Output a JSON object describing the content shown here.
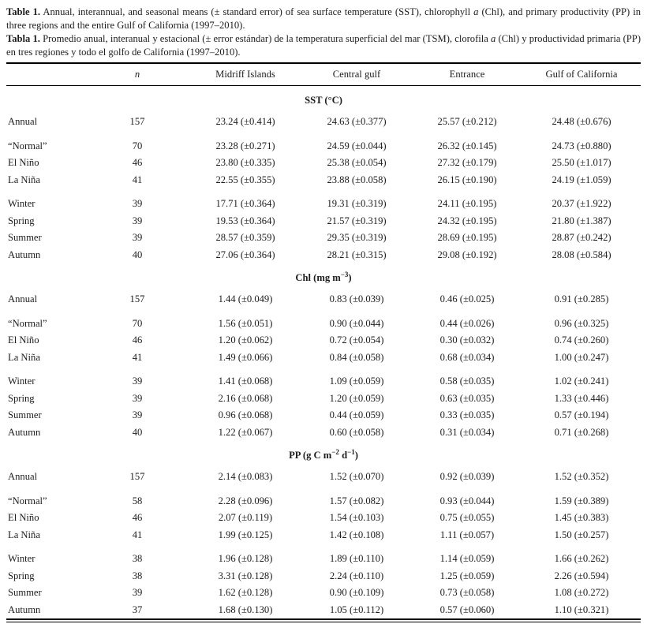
{
  "captions": {
    "en": {
      "bold": "Table 1.",
      "seg1": " Annual, interannual, and seasonal means (± standard error) of sea surface temperature (SST), chlorophyll ",
      "italic": "a",
      "seg2": " (Chl), and primary productivity (PP) in three regions and the entire Gulf of California (1997–2010)."
    },
    "es": {
      "bold": "Tabla 1.",
      "seg1": " Promedio anual, interanual y estacional (± error estándar) de la temperatura superficial del mar (TSM), clorofila ",
      "italic": "a",
      "seg2": " (Chl) y productividad primaria (PP) en tres regiones y todo el golfo de California (1997–2010)."
    }
  },
  "table": {
    "columns": {
      "row_label": "",
      "n": "n",
      "midriff": "Midriff Islands",
      "central": "Central gulf",
      "entrance": "Entrance",
      "gulf": "Gulf of California"
    },
    "sections": [
      {
        "id": "sst",
        "title_parts": [
          {
            "t": "SST (°C)"
          }
        ],
        "groups": [
          [
            {
              "label": "Annual",
              "n": "157",
              "values": [
                "23.24 (±0.414)",
                "24.63 (±0.377)",
                "25.57 (±0.212)",
                "24.48 (±0.676)"
              ]
            }
          ],
          [
            {
              "label": "“Normal”",
              "n": "70",
              "values": [
                "23.28 (±0.271)",
                "24.59 (±0.044)",
                "26.32 (±0.145)",
                "24.73 (±0.880)"
              ]
            },
            {
              "label": "El Niño",
              "n": "46",
              "values": [
                "23.80 (±0.335)",
                "25.38 (±0.054)",
                "27.32 (±0.179)",
                "25.50 (±1.017)"
              ]
            },
            {
              "label": "La Niña",
              "n": "41",
              "values": [
                "22.55 (±0.355)",
                "23.88 (±0.058)",
                "26.15 (±0.190)",
                "24.19 (±1.059)"
              ]
            }
          ],
          [
            {
              "label": "Winter",
              "n": "39",
              "values": [
                "17.71 (±0.364)",
                "19.31 (±0.319)",
                "24.11 (±0.195)",
                "20.37 (±1.922)"
              ]
            },
            {
              "label": "Spring",
              "n": "39",
              "values": [
                "19.53 (±0.364)",
                "21.57 (±0.319)",
                "24.32 (±0.195)",
                "21.80 (±1.387)"
              ]
            },
            {
              "label": "Summer",
              "n": "39",
              "values": [
                "28.57 (±0.359)",
                "29.35 (±0.319)",
                "28.69 (±0.195)",
                "28.87 (±0.242)"
              ]
            },
            {
              "label": "Autumn",
              "n": "40",
              "values": [
                "27.06 (±0.364)",
                "28.21 (±0.315)",
                "29.08 (±0.192)",
                "28.08 (±0.584)"
              ]
            }
          ]
        ]
      },
      {
        "id": "chl",
        "title_parts": [
          {
            "t": "Chl (mg m"
          },
          {
            "s": "−3"
          },
          {
            "t": ")"
          }
        ],
        "groups": [
          [
            {
              "label": "Annual",
              "n": "157",
              "values": [
                "1.44 (±0.049)",
                "0.83 (±0.039)",
                "0.46 (±0.025)",
                "0.91 (±0.285)"
              ]
            }
          ],
          [
            {
              "label": "“Normal”",
              "n": "70",
              "values": [
                "1.56 (±0.051)",
                "0.90 (±0.044)",
                "0.44 (±0.026)",
                "0.96 (±0.325)"
              ]
            },
            {
              "label": "El Niño",
              "n": "46",
              "values": [
                "1.20 (±0.062)",
                "0.72 (±0.054)",
                "0.30 (±0.032)",
                "0.74 (±0.260)"
              ]
            },
            {
              "label": "La Niña",
              "n": "41",
              "values": [
                "1.49 (±0.066)",
                "0.84 (±0.058)",
                "0.68 (±0.034)",
                "1.00 (±0.247)"
              ]
            }
          ],
          [
            {
              "label": "Winter",
              "n": "39",
              "values": [
                "1.41 (±0.068)",
                "1.09 (±0.059)",
                "0.58 (±0.035)",
                "1.02 (±0.241)"
              ]
            },
            {
              "label": "Spring",
              "n": "39",
              "values": [
                "2.16 (±0.068)",
                "1.20 (±0.059)",
                "0.63 (±0.035)",
                "1.33 (±0.446)"
              ]
            },
            {
              "label": "Summer",
              "n": "39",
              "values": [
                "0.96 (±0.068)",
                "0.44 (±0.059)",
                "0.33 (±0.035)",
                "0.57 (±0.194)"
              ]
            },
            {
              "label": "Autumn",
              "n": "40",
              "values": [
                "1.22 (±0.067)",
                "0.60 (±0.058)",
                "0.31 (±0.034)",
                "0.71 (±0.268)"
              ]
            }
          ]
        ]
      },
      {
        "id": "pp",
        "title_parts": [
          {
            "t": "PP (g C m"
          },
          {
            "s": "−2"
          },
          {
            "t": " d"
          },
          {
            "s": "−1"
          },
          {
            "t": ")"
          }
        ],
        "groups": [
          [
            {
              "label": "Annual",
              "n": "157",
              "values": [
                "2.14 (±0.083)",
                "1.52 (±0.070)",
                "0.92 (±0.039)",
                "1.52 (±0.352)"
              ]
            }
          ],
          [
            {
              "label": "“Normal”",
              "n": "58",
              "values": [
                "2.28 (±0.096)",
                "1.57 (±0.082)",
                "0.93 (±0.044)",
                "1.59 (±0.389)"
              ]
            },
            {
              "label": "El Niño",
              "n": "46",
              "values": [
                "2.07 (±0.119)",
                "1.54 (±0.103)",
                "0.75 (±0.055)",
                "1.45 (±0.383)"
              ]
            },
            {
              "label": "La Niña",
              "n": "41",
              "values": [
                "1.99 (±0.125)",
                "1.42 (±0.108)",
                "1.11 (±0.057)",
                "1.50 (±0.257)"
              ]
            }
          ],
          [
            {
              "label": "Winter",
              "n": "38",
              "values": [
                "1.96 (±0.128)",
                "1.89 (±0.110)",
                "1.14 (±0.059)",
                "1.66 (±0.262)"
              ]
            },
            {
              "label": "Spring",
              "n": "38",
              "values": [
                "3.31 (±0.128)",
                "2.24 (±0.110)",
                "1.25 (±0.059)",
                "2.26 (±0.594)"
              ]
            },
            {
              "label": "Summer",
              "n": "39",
              "values": [
                "1.62 (±0.128)",
                "0.90 (±0.109)",
                "0.73 (±0.058)",
                "1.08 (±0.272)"
              ]
            },
            {
              "label": "Autumn",
              "n": "37",
              "values": [
                "1.68 (±0.130)",
                "1.05 (±0.112)",
                "0.57 (±0.060)",
                "1.10 (±0.321)"
              ]
            }
          ]
        ]
      }
    ]
  }
}
